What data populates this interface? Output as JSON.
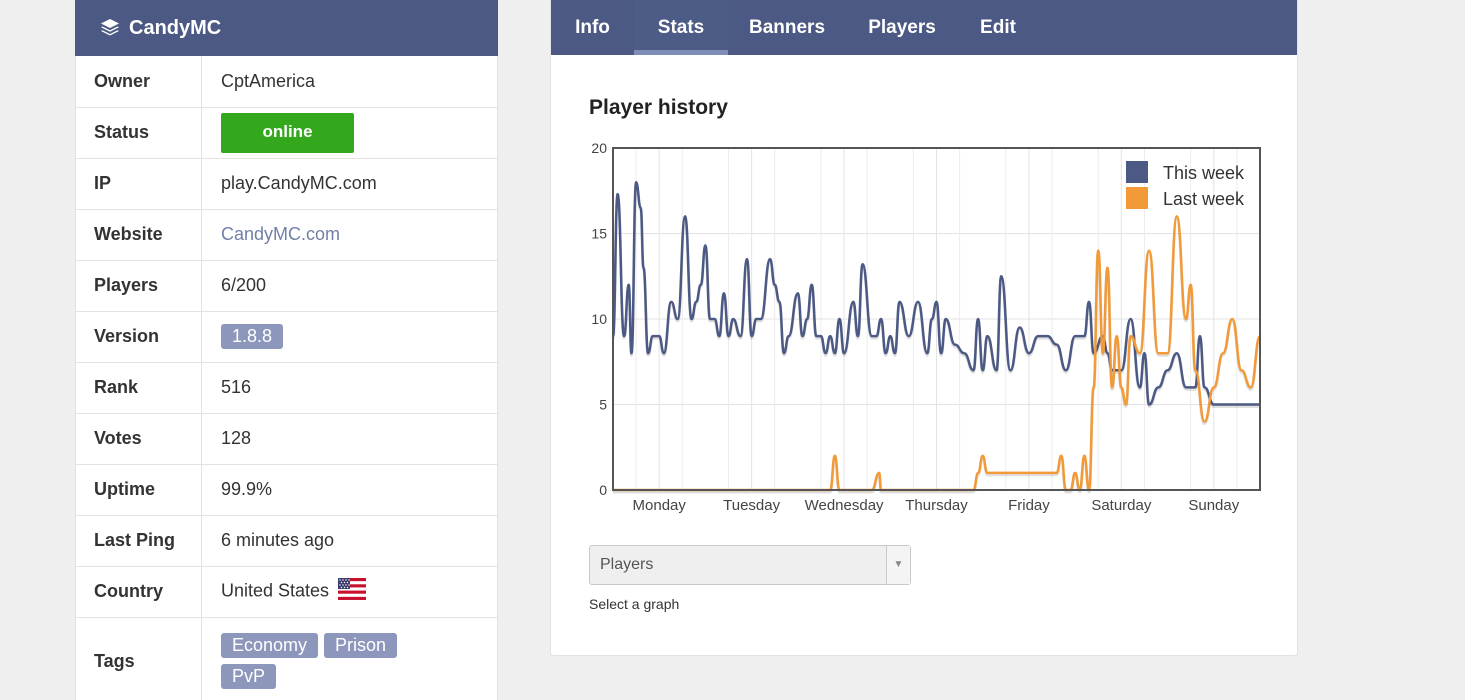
{
  "server": {
    "name": "CandyMC",
    "fields": [
      {
        "key": "Owner",
        "value": "CptAmerica",
        "type": "text"
      },
      {
        "key": "Status",
        "value": "online",
        "type": "status"
      },
      {
        "key": "IP",
        "value": "play.CandyMC.com",
        "type": "text"
      },
      {
        "key": "Website",
        "value": "CandyMC.com",
        "type": "link"
      },
      {
        "key": "Players",
        "value": "6/200",
        "type": "text"
      },
      {
        "key": "Version",
        "value": "1.8.8",
        "type": "tag"
      },
      {
        "key": "Rank",
        "value": "516",
        "type": "text"
      },
      {
        "key": "Votes",
        "value": "128",
        "type": "text"
      },
      {
        "key": "Uptime",
        "value": "99.9%",
        "type": "text"
      },
      {
        "key": "Last Ping",
        "value": "6 minutes ago",
        "type": "text"
      },
      {
        "key": "Country",
        "value": "United States",
        "type": "country"
      },
      {
        "key": "Tags",
        "value": "",
        "type": "tags"
      }
    ],
    "tags": [
      "Economy",
      "Prison",
      "PvP"
    ]
  },
  "tabs": [
    {
      "label": "Info",
      "active": false
    },
    {
      "label": "Stats",
      "active": true
    },
    {
      "label": "Banners",
      "active": false
    },
    {
      "label": "Players",
      "active": false
    },
    {
      "label": "Edit",
      "active": false
    }
  ],
  "chart_title": "Player history",
  "graph_select": {
    "value": "Players",
    "hint": "Select a graph"
  },
  "colors": {
    "header": "#4b5984",
    "this_week": "#4b5984",
    "last_week": "#f39a38",
    "online": "#34a81d",
    "tag": "#8d97bc"
  },
  "chart_data": {
    "type": "line",
    "title": "Player history",
    "ylim": [
      0,
      20
    ],
    "yticks": [
      0,
      5,
      10,
      15,
      20
    ],
    "xlim": [
      0,
      7
    ],
    "xticks": [
      {
        "label": "Monday",
        "x": 1
      },
      {
        "label": "Tuesday",
        "x": 2
      },
      {
        "label": "Wednesday",
        "x": 3
      },
      {
        "label": "Thursday",
        "x": 4
      },
      {
        "label": "Friday",
        "x": 5
      },
      {
        "label": "Saturday",
        "x": 6
      },
      {
        "label": "Sunday",
        "x": 7
      }
    ],
    "grid": true,
    "legend": "top-right",
    "series": [
      {
        "name": "This week",
        "color": "#4b5984",
        "x": [
          0,
          0.05,
          0.12,
          0.17,
          0.2,
          0.25,
          0.3,
          0.33,
          0.38,
          0.43,
          0.47,
          0.5,
          0.55,
          0.63,
          0.7,
          0.78,
          0.85,
          0.9,
          0.95,
          1.0,
          1.05,
          1.1,
          1.15,
          1.2,
          1.25,
          1.3,
          1.38,
          1.45,
          1.5,
          1.55,
          1.6,
          1.7,
          1.75,
          1.8,
          1.85,
          1.9,
          2.0,
          2.05,
          2.1,
          2.15,
          2.2,
          2.25,
          2.3,
          2.35,
          2.4,
          2.45,
          2.5,
          2.6,
          2.65,
          2.7,
          2.8,
          2.85,
          2.9,
          2.95,
          3.0,
          3.05,
          3.1,
          3.2,
          3.3,
          3.4,
          3.45,
          3.5,
          3.55,
          3.6,
          3.7,
          3.8,
          3.9,
          3.95,
          4.0,
          4.05,
          4.15,
          4.2,
          4.3,
          4.4,
          4.5,
          4.6,
          4.7,
          4.8,
          4.9,
          5.0,
          5.1,
          5.15,
          5.2,
          5.3,
          5.35,
          5.4,
          5.5,
          5.6,
          5.7,
          5.75,
          5.8,
          5.9,
          6.0,
          6.1,
          6.2,
          6.3,
          6.35,
          6.4,
          6.5,
          6.55,
          6.6,
          6.7,
          6.8,
          6.9,
          7.0
        ],
        "values": [
          9,
          17.3,
          9,
          12,
          8,
          18,
          16.5,
          13,
          8,
          9,
          9,
          9,
          8,
          11,
          10,
          16,
          10,
          11,
          12,
          14.3,
          10,
          10,
          9,
          11.5,
          9,
          10,
          9,
          13.5,
          9,
          10,
          10,
          13.5,
          12,
          11,
          8,
          9,
          11.5,
          9,
          10,
          12,
          9,
          9,
          8,
          9,
          8,
          10,
          8,
          11,
          9,
          13.2,
          9,
          9,
          10,
          8,
          9,
          8,
          11,
          9,
          11,
          8,
          10,
          11,
          8,
          10,
          8.5,
          8,
          7,
          10,
          7,
          9,
          7,
          12.5,
          7,
          9.5,
          8,
          9,
          9,
          8.5,
          7,
          9,
          9,
          11,
          8,
          9,
          8,
          7,
          7,
          10,
          6,
          8,
          5,
          6,
          7,
          8,
          6,
          6,
          9,
          6,
          5,
          5,
          5,
          5,
          5,
          5,
          5
        ]
      },
      {
        "name": "Last week",
        "color": "#f39a38",
        "x": [
          0,
          0.5,
          1.0,
          1.5,
          2.0,
          2.25,
          2.35,
          2.4,
          2.45,
          2.5,
          2.8,
          2.88,
          2.9,
          3.0,
          3.5,
          3.9,
          3.95,
          4.0,
          4.05,
          4.1,
          4.2,
          4.5,
          4.8,
          4.85,
          4.9,
          4.95,
          5.0,
          5.05,
          5.1,
          5.15,
          5.2,
          5.25,
          5.3,
          5.35,
          5.4,
          5.45,
          5.5,
          5.55,
          5.6,
          5.7,
          5.8,
          5.9,
          6.0,
          6.1,
          6.2,
          6.25,
          6.3,
          6.4,
          6.5,
          6.6,
          6.7,
          6.8,
          6.9,
          7.0
        ],
        "values": [
          0,
          0,
          0,
          0,
          0,
          0,
          0,
          2,
          0,
          0,
          0,
          1,
          0,
          0,
          0,
          0,
          1,
          2,
          1,
          1,
          1,
          1,
          1,
          2,
          0,
          0,
          1,
          0,
          2,
          0,
          6,
          14,
          8,
          13,
          6,
          9,
          6,
          5,
          9,
          8,
          14,
          8,
          8,
          16,
          10,
          12,
          7,
          4,
          6,
          8,
          10,
          7,
          6,
          9
        ]
      }
    ]
  }
}
